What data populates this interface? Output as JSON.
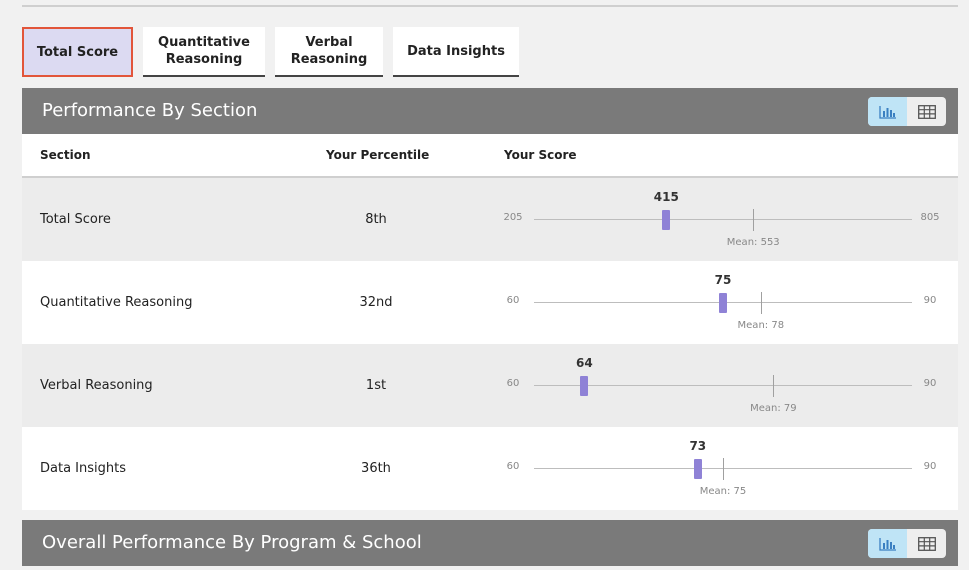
{
  "tabs": [
    {
      "label": "Total Score",
      "active": true
    },
    {
      "label": "Quantitative Reasoning",
      "active": false
    },
    {
      "label": "Verbal Reasoning",
      "active": false
    },
    {
      "label": "Data Insights",
      "active": false
    }
  ],
  "performance": {
    "title": "Performance By Section",
    "view_toggle": {
      "chart_icon": "bar-chart-icon",
      "table_icon": "table-grid-icon",
      "selected": "chart"
    },
    "columns": {
      "section": "Section",
      "percentile": "Your Percentile",
      "score": "Your Score"
    },
    "rows": [
      {
        "section": "Total Score",
        "percentile": "8th",
        "score": "415",
        "score_value": 415,
        "min": "205",
        "max": "805",
        "min_value": 205,
        "max_value": 805,
        "mean_label": "Mean: 553",
        "mean_value": 553
      },
      {
        "section": "Quantitative Reasoning",
        "percentile": "32nd",
        "score": "75",
        "score_value": 75,
        "min": "60",
        "max": "90",
        "min_value": 60,
        "max_value": 90,
        "mean_label": "Mean: 78",
        "mean_value": 78
      },
      {
        "section": "Verbal Reasoning",
        "percentile": "1st",
        "score": "64",
        "score_value": 64,
        "min": "60",
        "max": "90",
        "min_value": 60,
        "max_value": 90,
        "mean_label": "Mean: 79",
        "mean_value": 79
      },
      {
        "section": "Data Insights",
        "percentile": "36th",
        "score": "73",
        "score_value": 73,
        "min": "60",
        "max": "90",
        "min_value": 60,
        "max_value": 90,
        "mean_label": "Mean: 75",
        "mean_value": 75
      }
    ]
  },
  "overall": {
    "title": "Overall Performance By Program & School",
    "view_toggle": {
      "chart_icon": "bar-chart-icon",
      "table_icon": "table-grid-icon",
      "selected": "chart"
    }
  },
  "colors": {
    "marker": "#8f82d6",
    "header_bg": "#7a7a7a",
    "active_tab_bg": "#dcdaf2",
    "active_tab_border": "#e2553a",
    "toggle_on": "#bfe4f6"
  }
}
